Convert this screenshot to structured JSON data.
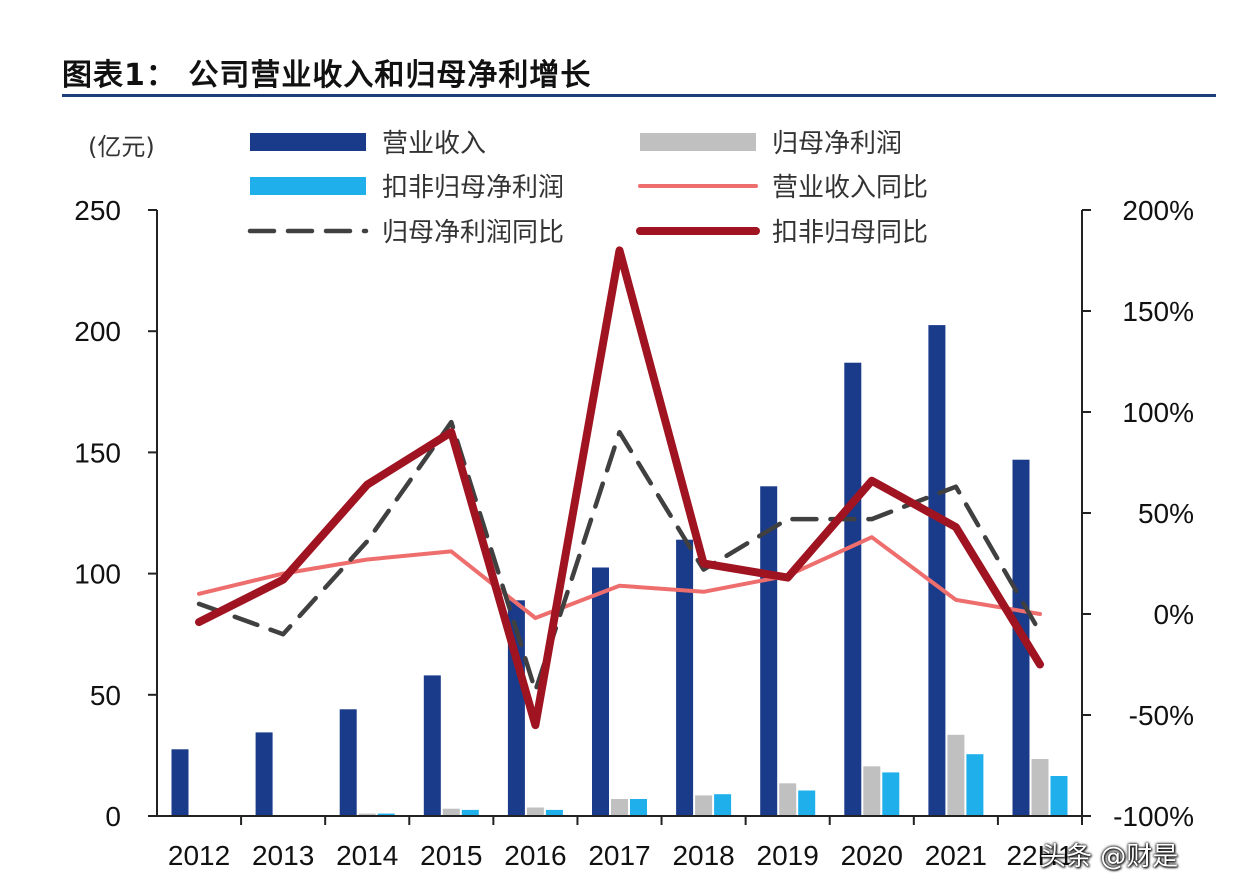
{
  "header": {
    "title": "图表1： 公司营业收入和归母净利增长"
  },
  "watermark": "头条 @财是",
  "colors": {
    "revenue": "#1a3a8a",
    "net_profit": "#c0c0c0",
    "deducted_profit": "#1fb0ec",
    "revenue_yoy": "#ee6e6e",
    "net_profit_yoy": "#404040",
    "deducted_yoy": "#a01422",
    "title_rule": "#1b3e7a"
  },
  "chart_data": {
    "type": "bar",
    "categories": [
      "2012",
      "2013",
      "2014",
      "2015",
      "2016",
      "2017",
      "2018",
      "2019",
      "2020",
      "2021",
      "22H1"
    ],
    "y_left": {
      "unit": "(亿元)",
      "range": [
        0,
        250
      ],
      "ticks": [
        "0",
        "50",
        "100",
        "150",
        "200",
        "250"
      ]
    },
    "y_right": {
      "range": [
        -100,
        200
      ],
      "ticks": [
        "-100%",
        "-50%",
        "0%",
        "50%",
        "100%",
        "150%",
        "200%"
      ]
    },
    "grid": false,
    "legend_position": "top",
    "series": [
      {
        "name": "营业收入",
        "kind": "bar",
        "axis": "left",
        "values": [
          27.5,
          34.5,
          44,
          58,
          89,
          102.5,
          114,
          136,
          187,
          202.5,
          147
        ]
      },
      {
        "name": "归母净利润",
        "kind": "bar",
        "axis": "left",
        "values": [
          0.3,
          0.3,
          1,
          3,
          3.5,
          7,
          8.5,
          13.5,
          20.5,
          33.5,
          23.5
        ]
      },
      {
        "name": "扣非归母净利润",
        "kind": "bar",
        "axis": "left",
        "values": [
          0.2,
          0.3,
          1,
          2.5,
          2.5,
          7,
          9,
          10.5,
          18,
          25.5,
          16.5
        ]
      },
      {
        "name": "营业收入同比",
        "kind": "line",
        "axis": "right",
        "values": [
          10,
          20,
          27,
          31,
          -2,
          14,
          11,
          19,
          38,
          7,
          0
        ]
      },
      {
        "name": "归母净利润同比",
        "kind": "dashed-line",
        "axis": "right",
        "values": [
          5,
          -10,
          36,
          95,
          -38,
          90,
          22,
          47,
          47,
          63,
          -9
        ]
      },
      {
        "name": "扣非归母同比",
        "kind": "thick-line",
        "axis": "right",
        "values": [
          -4,
          17,
          64,
          90,
          -55,
          180,
          25,
          18,
          66,
          43,
          -25
        ]
      }
    ]
  }
}
